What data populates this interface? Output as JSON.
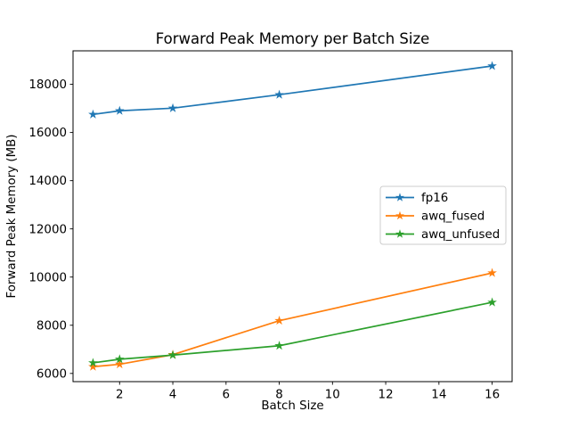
{
  "chart_data": {
    "type": "line",
    "title": "Forward Peak Memory per Batch Size",
    "xlabel": "Batch Size",
    "ylabel": "Forward Peak Memory (MB)",
    "x": [
      1,
      2,
      4,
      8,
      16
    ],
    "series": [
      {
        "name": "fp16",
        "color": "#1f77b4",
        "values": [
          16750,
          16900,
          17010,
          17570,
          18760
        ]
      },
      {
        "name": "awq_fused",
        "color": "#ff7f0e",
        "values": [
          6280,
          6380,
          6780,
          8190,
          10170
        ]
      },
      {
        "name": "awq_unfused",
        "color": "#2ca02c",
        "values": [
          6440,
          6590,
          6760,
          7150,
          8950
        ]
      }
    ],
    "marker": "star",
    "xtick_values": [
      2,
      4,
      6,
      8,
      10,
      12,
      14,
      16
    ],
    "ytick_values": [
      6000,
      8000,
      10000,
      12000,
      14000,
      16000,
      18000
    ],
    "xlim": [
      0.25,
      16.75
    ],
    "ylim": [
      5660,
      19390
    ],
    "grid": false,
    "legend": {
      "position": "center right",
      "entries": [
        "fp16",
        "awq_fused",
        "awq_unfused"
      ]
    },
    "colors": {
      "background": "#ffffff",
      "axes": "#000000",
      "text": "#000000",
      "legend_border": "#cccccc",
      "legend_background": "#ffffff"
    }
  }
}
